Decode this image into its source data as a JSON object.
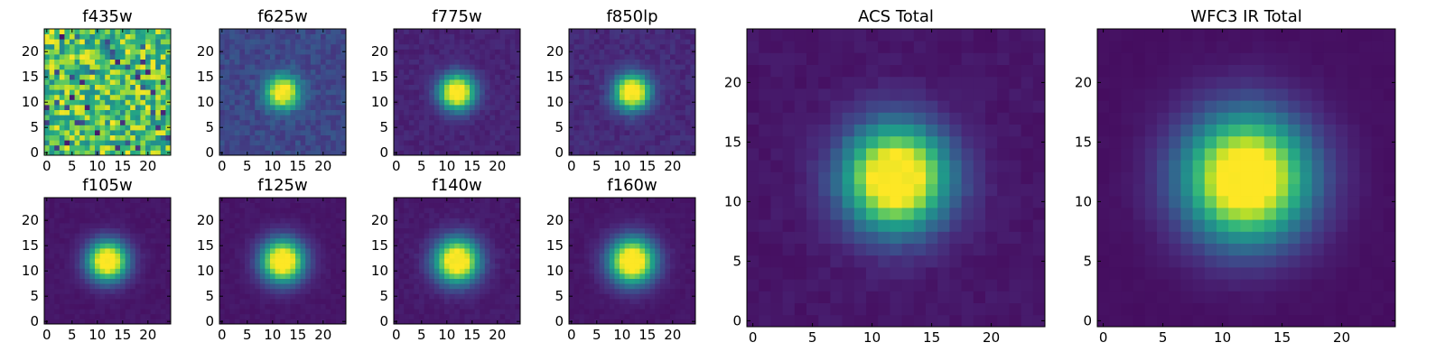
{
  "chart_data": {
    "type": "heatmap",
    "colormap": "viridis",
    "colormap_stops": [
      "#440154",
      "#482878",
      "#3e4989",
      "#31688e",
      "#26828e",
      "#1f9e89",
      "#35b779",
      "#6ece58",
      "#b5de2b",
      "#fde725"
    ],
    "grid_size": 25,
    "panels": [
      {
        "id": "f435w",
        "title": "f435w",
        "pattern": "noise",
        "x_ticks": [
          0,
          5,
          10,
          15,
          20
        ],
        "y_ticks": [
          0,
          5,
          10,
          15,
          20
        ],
        "xlim": [
          -0.5,
          24.5
        ],
        "ylim": [
          -0.5,
          24.5
        ],
        "center": [
          12,
          12
        ]
      },
      {
        "id": "f625w",
        "title": "f625w",
        "pattern": "peak",
        "width": 2.2,
        "background": 0.22,
        "noise": 0.12,
        "x_ticks": [
          0,
          5,
          10,
          15,
          20
        ],
        "y_ticks": [
          0,
          5,
          10,
          15,
          20
        ],
        "xlim": [
          -0.5,
          24.5
        ],
        "ylim": [
          -0.5,
          24.5
        ],
        "center": [
          12,
          12
        ]
      },
      {
        "id": "f775w",
        "title": "f775w",
        "pattern": "peak",
        "width": 2.4,
        "background": 0.1,
        "noise": 0.06,
        "x_ticks": [
          0,
          5,
          10,
          15,
          20
        ],
        "y_ticks": [
          0,
          5,
          10,
          15,
          20
        ],
        "xlim": [
          -0.5,
          24.5
        ],
        "ylim": [
          -0.5,
          24.5
        ],
        "center": [
          12,
          12
        ]
      },
      {
        "id": "f850lp",
        "title": "f850lp",
        "pattern": "peak",
        "width": 2.4,
        "background": 0.12,
        "noise": 0.08,
        "x_ticks": [
          0,
          5,
          10,
          15,
          20
        ],
        "y_ticks": [
          0,
          5,
          10,
          15,
          20
        ],
        "xlim": [
          -0.5,
          24.5
        ],
        "ylim": [
          -0.5,
          24.5
        ],
        "center": [
          12,
          12
        ]
      },
      {
        "id": "f105w",
        "title": "f105w",
        "pattern": "peak",
        "width": 2.7,
        "background": 0.06,
        "noise": 0.03,
        "x_ticks": [
          0,
          5,
          10,
          15,
          20
        ],
        "y_ticks": [
          0,
          5,
          10,
          15,
          20
        ],
        "xlim": [
          -0.5,
          24.5
        ],
        "ylim": [
          -0.5,
          24.5
        ],
        "center": [
          12,
          12
        ]
      },
      {
        "id": "f125w",
        "title": "f125w",
        "pattern": "peak",
        "width": 2.9,
        "background": 0.06,
        "noise": 0.03,
        "x_ticks": [
          0,
          5,
          10,
          15,
          20
        ],
        "y_ticks": [
          0,
          5,
          10,
          15,
          20
        ],
        "xlim": [
          -0.5,
          24.5
        ],
        "ylim": [
          -0.5,
          24.5
        ],
        "center": [
          12,
          12
        ]
      },
      {
        "id": "f140w",
        "title": "f140w",
        "pattern": "peak",
        "width": 3.0,
        "background": 0.07,
        "noise": 0.04,
        "x_ticks": [
          0,
          5,
          10,
          15,
          20
        ],
        "y_ticks": [
          0,
          5,
          10,
          15,
          20
        ],
        "xlim": [
          -0.5,
          24.5
        ],
        "ylim": [
          -0.5,
          24.5
        ],
        "center": [
          12,
          12
        ]
      },
      {
        "id": "f160w",
        "title": "f160w",
        "pattern": "peak",
        "width": 3.1,
        "background": 0.06,
        "noise": 0.03,
        "x_ticks": [
          0,
          5,
          10,
          15,
          20
        ],
        "y_ticks": [
          0,
          5,
          10,
          15,
          20
        ],
        "xlim": [
          -0.5,
          24.5
        ],
        "ylim": [
          -0.5,
          24.5
        ],
        "center": [
          12,
          12
        ]
      },
      {
        "id": "acs-total",
        "title": "ACS Total",
        "pattern": "peak",
        "width": 3.0,
        "background": 0.06,
        "noise": 0.04,
        "x_ticks": [
          0,
          5,
          10,
          15,
          20
        ],
        "y_ticks": [
          0,
          5,
          10,
          15,
          20
        ],
        "xlim": [
          -0.5,
          24.5
        ],
        "ylim": [
          -0.5,
          24.5
        ],
        "center": [
          12,
          12
        ]
      },
      {
        "id": "wfc3-ir-total",
        "title": "WFC3 IR Total",
        "pattern": "peak",
        "width": 3.6,
        "background": 0.04,
        "noise": 0.015,
        "x_ticks": [
          0,
          5,
          10,
          15,
          20
        ],
        "y_ticks": [
          0,
          5,
          10,
          15,
          20
        ],
        "xlim": [
          -0.5,
          24.5
        ],
        "ylim": [
          -0.5,
          24.5
        ],
        "center": [
          12,
          12
        ]
      }
    ]
  }
}
